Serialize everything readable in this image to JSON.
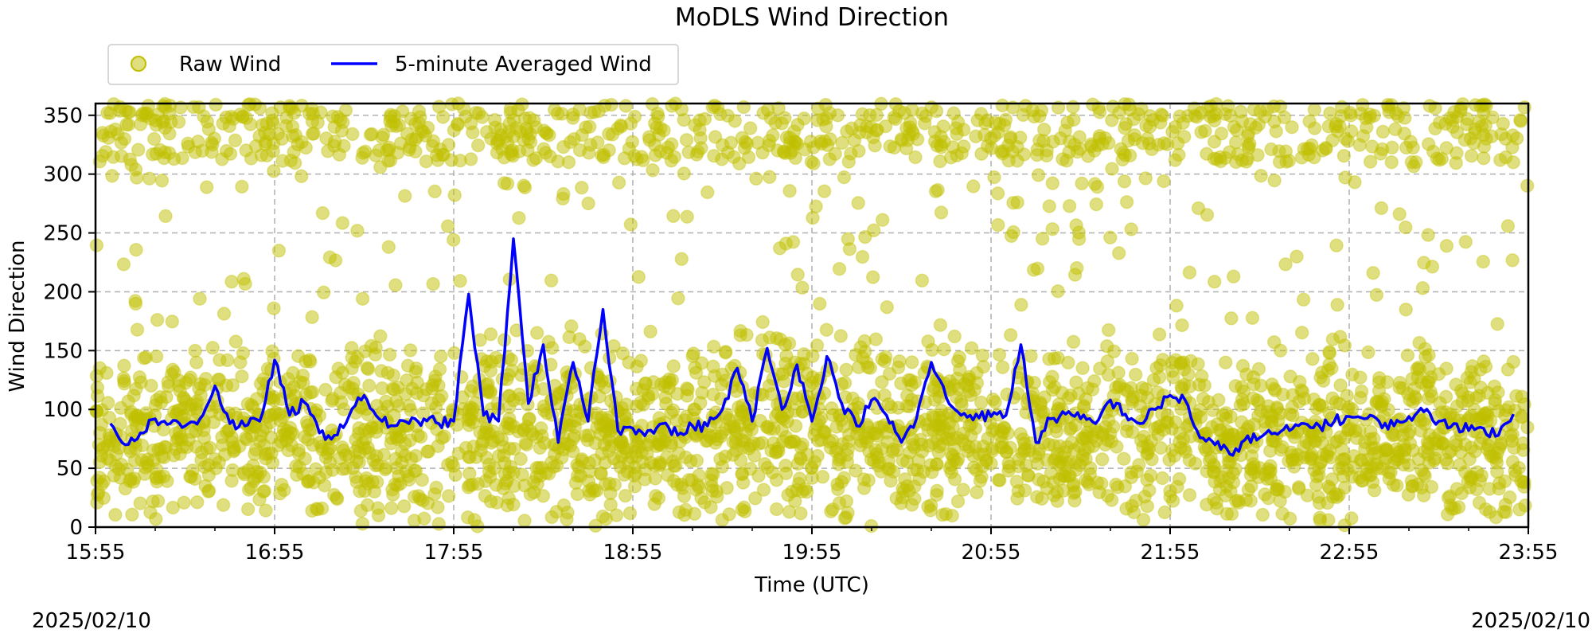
{
  "chart_data": {
    "type": "line",
    "title": "MoDLS Wind Direction",
    "xlabel": "Time (UTC)",
    "ylabel": "Wind Direction",
    "date_left": "2025/02/10",
    "date_right": "2025/02/10",
    "x_ticks": [
      "15:55",
      "16:55",
      "17:55",
      "18:55",
      "19:55",
      "20:55",
      "21:55",
      "22:55",
      "23:55"
    ],
    "y_ticks": [
      0,
      50,
      100,
      150,
      200,
      250,
      300,
      350
    ],
    "ylim": [
      0,
      360
    ],
    "grid": true,
    "legend_position": "top-left",
    "series": [
      {
        "name": "Raw Wind",
        "kind": "scatter",
        "color": "#bfbf00",
        "description_values": "dense scatter of raw samples, concentrated 0-150 deg with many points near 330-360 deg"
      },
      {
        "name": "5-minute Averaged Wind",
        "kind": "line",
        "color": "#0000ff",
        "x": [
          "16:00",
          "16:05",
          "16:10",
          "16:15",
          "16:20",
          "16:25",
          "16:30",
          "16:35",
          "16:40",
          "16:45",
          "16:50",
          "16:55",
          "17:00",
          "17:05",
          "17:10",
          "17:15",
          "17:20",
          "17:25",
          "17:30",
          "17:35",
          "17:40",
          "17:45",
          "17:50",
          "17:55",
          "18:00",
          "18:05",
          "18:10",
          "18:15",
          "18:20",
          "18:25",
          "18:30",
          "18:35",
          "18:40",
          "18:45",
          "18:50",
          "18:55",
          "19:00",
          "19:05",
          "19:10",
          "19:15",
          "19:20",
          "19:25",
          "19:30",
          "19:35",
          "19:40",
          "19:45",
          "19:50",
          "19:55",
          "20:00",
          "20:05",
          "20:10",
          "20:15",
          "20:20",
          "20:25",
          "20:30",
          "20:35",
          "20:40",
          "20:45",
          "20:50",
          "20:55",
          "21:00",
          "21:05",
          "21:10",
          "21:15",
          "21:20",
          "21:25",
          "21:30",
          "21:35",
          "21:40",
          "21:45",
          "21:50",
          "21:55",
          "22:00",
          "22:05",
          "22:10",
          "22:15",
          "22:20",
          "22:25",
          "22:30",
          "22:35",
          "22:40",
          "22:45",
          "22:50",
          "22:55",
          "23:00",
          "23:05",
          "23:10",
          "23:15",
          "23:20",
          "23:25",
          "23:30",
          "23:35",
          "23:40",
          "23:45",
          "23:50"
        ],
        "values": [
          88,
          70,
          80,
          92,
          88,
          86,
          92,
          120,
          88,
          86,
          90,
          142,
          95,
          106,
          80,
          78,
          95,
          112,
          92,
          86,
          88,
          92,
          88,
          90,
          198,
          95,
          90,
          245,
          105,
          155,
          72,
          140,
          90,
          185,
          82,
          84,
          82,
          88,
          78,
          86,
          86,
          100,
          135,
          90,
          152,
          100,
          138,
          90,
          145,
          105,
          86,
          108,
          95,
          72,
          92,
          140,
          110,
          95,
          96,
          94,
          95,
          155,
          72,
          92,
          96,
          92,
          88,
          108,
          96,
          88,
          100,
          112,
          108,
          76,
          70,
          62,
          74,
          76,
          80,
          82,
          88,
          86,
          90,
          94,
          92,
          90,
          86,
          94,
          98,
          90,
          88,
          82,
          84,
          78,
          96
        ]
      }
    ]
  }
}
